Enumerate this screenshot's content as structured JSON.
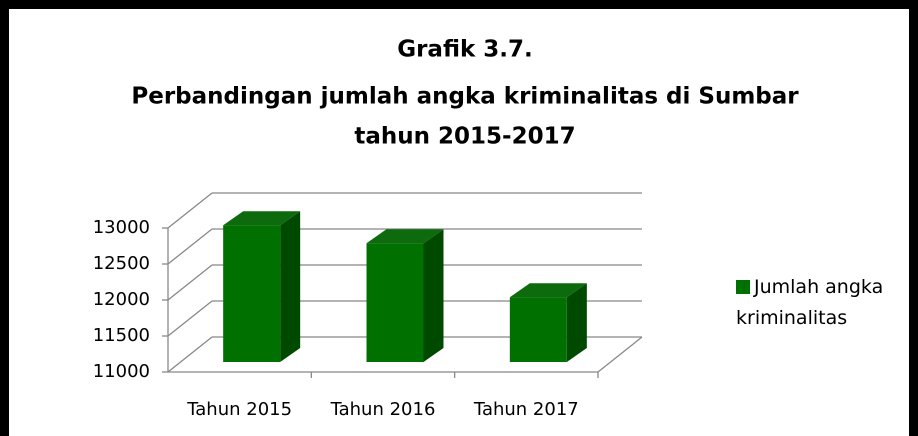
{
  "chart_data": {
    "type": "bar3d",
    "title": [
      "Grafik 3.7.",
      "Perbandingan jumlah angka kriminalitas di Sumbar",
      "tahun 2015-2017"
    ],
    "categories": [
      "Tahun 2015",
      "Tahun 2016",
      "Tahun 2017"
    ],
    "series": [
      {
        "name": "Jumlah angka kriminalitas",
        "color": "#007000",
        "values": [
          12900,
          12650,
          11900
        ]
      }
    ],
    "ylim": [
      11000,
      13000
    ],
    "yticks": [
      11000,
      11500,
      12000,
      12500,
      13000
    ],
    "grid": true,
    "legend": "right"
  }
}
